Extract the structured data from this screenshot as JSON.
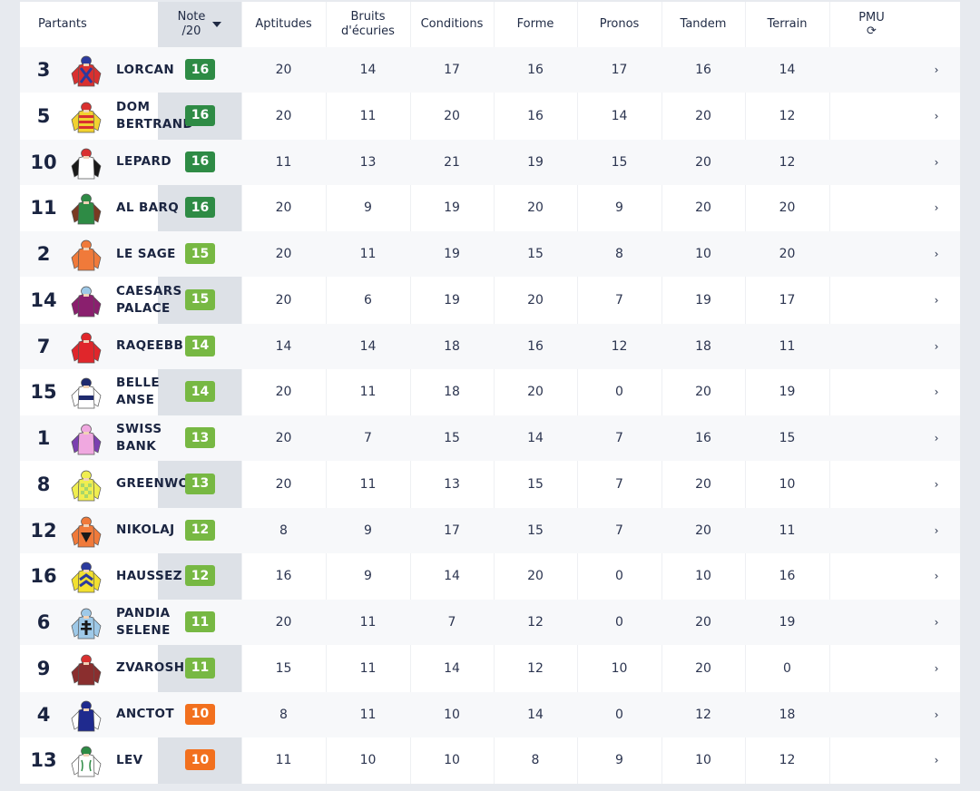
{
  "header": {
    "partants": "Partants",
    "note_line1": "Note",
    "note_line2": "/20",
    "aptitudes": "Aptitudes",
    "bruits_line1": "Bruits",
    "bruits_line2": "d'écuries",
    "conditions": "Conditions",
    "forme": "Forme",
    "pronos": "Pronos",
    "tandem": "Tandem",
    "terrain": "Terrain",
    "pmu": "PMU",
    "refresh_glyph": "⟳",
    "sort_icon": "caret-down-icon"
  },
  "colors": {
    "dark_green": "#2e8b45",
    "light_green": "#77b843",
    "orange": "#f2701e"
  },
  "chevron": "›",
  "rows": [
    {
      "num": "3",
      "name": "LORCAN",
      "note": "16",
      "tier": "dark_green",
      "aptitudes": "20",
      "bruits": "14",
      "conditions": "17",
      "forme": "16",
      "pronos": "17",
      "tandem": "16",
      "terrain": "14",
      "silk": {
        "body": "#d9302f",
        "sleeves": "#d9302f",
        "cap": "#2b3a9e",
        "pattern": "cross",
        "pc": "#2b3a9e"
      }
    },
    {
      "num": "5",
      "name": "DOM BERTRAND",
      "note": "16",
      "tier": "dark_green",
      "aptitudes": "20",
      "bruits": "11",
      "conditions": "20",
      "forme": "16",
      "pronos": "14",
      "tandem": "20",
      "terrain": "12",
      "silk": {
        "body": "#f2d230",
        "sleeves": "#f2d230",
        "cap": "#d9302f",
        "pattern": "hoops",
        "pc": "#d9302f"
      }
    },
    {
      "num": "10",
      "name": "LEPARD",
      "note": "16",
      "tier": "dark_green",
      "aptitudes": "11",
      "bruits": "13",
      "conditions": "21",
      "forme": "19",
      "pronos": "15",
      "tandem": "20",
      "terrain": "12",
      "silk": {
        "body": "#ffffff",
        "sleeves": "#1a1a1a",
        "cap": "#d9302f",
        "pattern": "none",
        "pc": "#1a1a1a"
      }
    },
    {
      "num": "11",
      "name": "AL BARQ",
      "note": "16",
      "tier": "dark_green",
      "aptitudes": "20",
      "bruits": "9",
      "conditions": "19",
      "forme": "20",
      "pronos": "9",
      "tandem": "20",
      "terrain": "20",
      "silk": {
        "body": "#2e8b45",
        "sleeves": "#7a3a22",
        "cap": "#2e8b45",
        "pattern": "none",
        "pc": "#2e8b45"
      }
    },
    {
      "num": "2",
      "name": "LE SAGE",
      "note": "15",
      "tier": "light_green",
      "aptitudes": "20",
      "bruits": "11",
      "conditions": "19",
      "forme": "15",
      "pronos": "8",
      "tandem": "10",
      "terrain": "20",
      "silk": {
        "body": "#f07a3a",
        "sleeves": "#f07a3a",
        "cap": "#f07a3a",
        "pattern": "none",
        "pc": "#f07a3a"
      }
    },
    {
      "num": "14",
      "name": "CAESARS PALACE",
      "note": "15",
      "tier": "light_green",
      "aptitudes": "20",
      "bruits": "6",
      "conditions": "19",
      "forme": "20",
      "pronos": "7",
      "tandem": "19",
      "terrain": "17",
      "silk": {
        "body": "#8a1f6e",
        "sleeves": "#8a1f6e",
        "cap": "#9ec9e8",
        "pattern": "none",
        "pc": "#8a1f6e"
      }
    },
    {
      "num": "7",
      "name": "RAQEEBB",
      "note": "14",
      "tier": "light_green",
      "aptitudes": "14",
      "bruits": "14",
      "conditions": "18",
      "forme": "16",
      "pronos": "12",
      "tandem": "18",
      "terrain": "11",
      "silk": {
        "body": "#e0262b",
        "sleeves": "#e0262b",
        "cap": "#e0262b",
        "pattern": "none",
        "pc": "#e0262b"
      }
    },
    {
      "num": "15",
      "name": "BELLE ANSE",
      "note": "14",
      "tier": "light_green",
      "aptitudes": "20",
      "bruits": "11",
      "conditions": "18",
      "forme": "20",
      "pronos": "0",
      "tandem": "20",
      "terrain": "19",
      "silk": {
        "body": "#ffffff",
        "sleeves": "#ffffff",
        "cap": "#1f2a6e",
        "pattern": "band",
        "pc": "#1f2a6e"
      }
    },
    {
      "num": "1",
      "name": "SWISS BANK",
      "note": "13",
      "tier": "light_green",
      "aptitudes": "20",
      "bruits": "7",
      "conditions": "15",
      "forme": "14",
      "pronos": "7",
      "tandem": "16",
      "terrain": "15",
      "silk": {
        "body": "#f0a8e0",
        "sleeves": "#7b3fb0",
        "cap": "#f0a8e0",
        "pattern": "none",
        "pc": "#7b3fb0"
      }
    },
    {
      "num": "8",
      "name": "GREENWO",
      "note": "13",
      "tier": "light_green",
      "aptitudes": "20",
      "bruits": "11",
      "conditions": "13",
      "forme": "15",
      "pronos": "7",
      "tandem": "20",
      "terrain": "10",
      "silk": {
        "body": "#f0ee50",
        "sleeves": "#f0ee50",
        "cap": "#f0ee50",
        "pattern": "checks",
        "pc": "#a8d66a"
      }
    },
    {
      "num": "12",
      "name": "NIKOLAJ",
      "note": "12",
      "tier": "light_green",
      "aptitudes": "8",
      "bruits": "9",
      "conditions": "17",
      "forme": "15",
      "pronos": "7",
      "tandem": "20",
      "terrain": "11",
      "silk": {
        "body": "#f07a3a",
        "sleeves": "#f07a3a",
        "cap": "#f07a3a",
        "pattern": "triangle",
        "pc": "#1a1a1a"
      }
    },
    {
      "num": "16",
      "name": "HAUSSEZ",
      "note": "12",
      "tier": "light_green",
      "aptitudes": "16",
      "bruits": "9",
      "conditions": "14",
      "forme": "20",
      "pronos": "0",
      "tandem": "10",
      "terrain": "16",
      "silk": {
        "body": "#f2e030",
        "sleeves": "#f2e030",
        "cap": "#2b3a9e",
        "pattern": "chevrons",
        "pc": "#2b3a9e"
      }
    },
    {
      "num": "6",
      "name": "PANDIA SELENE",
      "note": "11",
      "tier": "light_green",
      "aptitudes": "20",
      "bruits": "11",
      "conditions": "7",
      "forme": "12",
      "pronos": "0",
      "tandem": "20",
      "terrain": "19",
      "silk": {
        "body": "#9ec9e8",
        "sleeves": "#9ec9e8",
        "cap": "#9ec9e8",
        "pattern": "cross-lorraine",
        "pc": "#1a1a1a"
      }
    },
    {
      "num": "9",
      "name": "ZVAROSHI",
      "note": "11",
      "tier": "light_green",
      "aptitudes": "15",
      "bruits": "11",
      "conditions": "14",
      "forme": "12",
      "pronos": "10",
      "tandem": "20",
      "terrain": "0",
      "silk": {
        "body": "#8a2e2e",
        "sleeves": "#8a2e2e",
        "cap": "#d9302f",
        "pattern": "none",
        "pc": "#8a2e2e"
      }
    },
    {
      "num": "4",
      "name": "ANCTOT",
      "note": "10",
      "tier": "orange",
      "aptitudes": "8",
      "bruits": "11",
      "conditions": "10",
      "forme": "14",
      "pronos": "0",
      "tandem": "12",
      "terrain": "18",
      "silk": {
        "body": "#1f2a8e",
        "sleeves": "#ffffff",
        "cap": "#1f2a8e",
        "pattern": "none",
        "pc": "#1f2a8e"
      }
    },
    {
      "num": "13",
      "name": "LEV",
      "note": "10",
      "tier": "orange",
      "aptitudes": "11",
      "bruits": "10",
      "conditions": "10",
      "forme": "8",
      "pronos": "9",
      "tandem": "10",
      "terrain": "12",
      "silk": {
        "body": "#ffffff",
        "sleeves": "#ffffff",
        "cap": "#2e8b45",
        "pattern": "braces",
        "pc": "#2e8b45"
      }
    }
  ]
}
